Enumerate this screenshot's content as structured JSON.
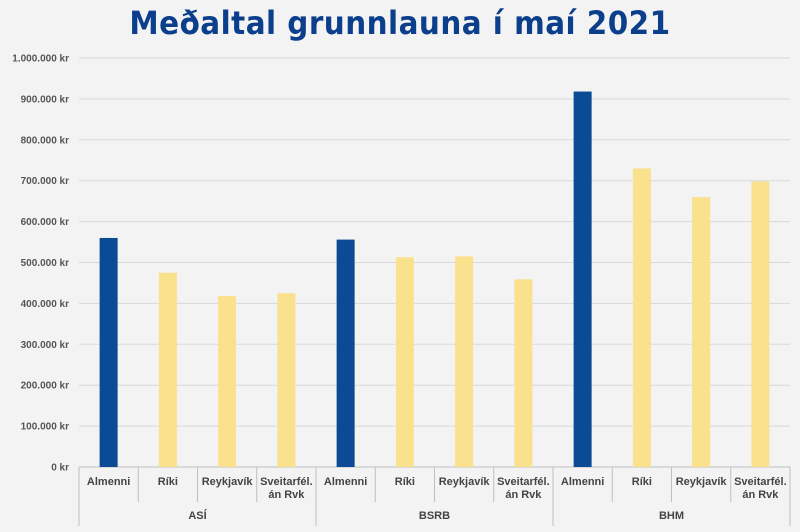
{
  "chart_data": {
    "type": "bar",
    "title": "Meðaltal grunnlauna í maí 2021",
    "xlabel": "",
    "ylabel": "",
    "ylim": [
      0,
      1000000
    ],
    "y_ticks": [
      "0 kr",
      "100.000 kr",
      "200.000 kr",
      "300.000 kr",
      "400.000 kr",
      "500.000 kr",
      "600.000 kr",
      "700.000 kr",
      "800.000 kr",
      "900.000 kr",
      "1.000.000 kr"
    ],
    "grid": true,
    "legend": "none",
    "colors": {
      "highlight": "#0b4a94",
      "normal": "#fae18e"
    },
    "groups": [
      {
        "name": "ASÍ",
        "categories": [
          [
            "Almenni"
          ],
          [
            "Ríki"
          ],
          [
            "Reykjavík"
          ],
          [
            "Sveitarfél.",
            "án Rvk"
          ]
        ],
        "values": [
          560000,
          475000,
          418000,
          425000
        ]
      },
      {
        "name": "BSRB",
        "categories": [
          [
            "Almenni"
          ],
          [
            "Ríki"
          ],
          [
            "Reykjavík"
          ],
          [
            "Sveitarfél.",
            "án Rvk"
          ]
        ],
        "values": [
          556000,
          513000,
          515000,
          459000
        ]
      },
      {
        "name": "BHM",
        "categories": [
          [
            "Almenni"
          ],
          [
            "Ríki"
          ],
          [
            "Reykjavík"
          ],
          [
            "Sveitarfél.",
            "án Rvk"
          ]
        ],
        "values": [
          918000,
          730000,
          660000,
          698000
        ]
      }
    ]
  }
}
